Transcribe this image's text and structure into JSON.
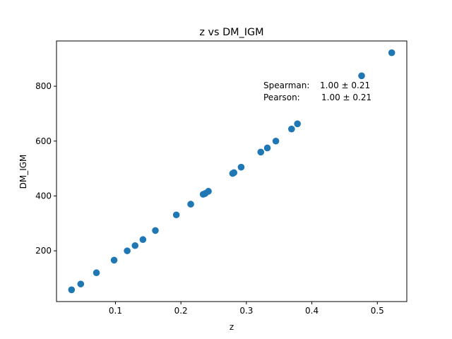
{
  "chart_data": {
    "type": "scatter",
    "title": "z vs DM_IGM",
    "xlabel": "z",
    "ylabel": "DM_IGM",
    "xlim": [
      0.01,
      0.545
    ],
    "ylim": [
      15,
      965
    ],
    "xticks": [
      0.1,
      0.2,
      0.3,
      0.4,
      0.5
    ],
    "xtick_labels": [
      "0.1",
      "0.2",
      "0.3",
      "0.4",
      "0.5"
    ],
    "yticks": [
      200,
      400,
      600,
      800
    ],
    "ytick_labels": [
      "200",
      "400",
      "600",
      "800"
    ],
    "grid": false,
    "marker_color": "#1f77b4",
    "annotation": {
      "spearman_label": "Spearman:",
      "spearman_value": "1.00 ± 0.21",
      "pearson_label": "Pearson:",
      "pearson_value": "1.00 ± 0.21"
    },
    "points": [
      {
        "x": 0.033,
        "y": 58
      },
      {
        "x": 0.047,
        "y": 79
      },
      {
        "x": 0.071,
        "y": 120
      },
      {
        "x": 0.098,
        "y": 166
      },
      {
        "x": 0.118,
        "y": 200
      },
      {
        "x": 0.13,
        "y": 219
      },
      {
        "x": 0.142,
        "y": 241
      },
      {
        "x": 0.161,
        "y": 274
      },
      {
        "x": 0.193,
        "y": 331
      },
      {
        "x": 0.215,
        "y": 370
      },
      {
        "x": 0.234,
        "y": 406
      },
      {
        "x": 0.237,
        "y": 409
      },
      {
        "x": 0.242,
        "y": 417
      },
      {
        "x": 0.279,
        "y": 482
      },
      {
        "x": 0.281,
        "y": 485
      },
      {
        "x": 0.292,
        "y": 505
      },
      {
        "x": 0.322,
        "y": 560
      },
      {
        "x": 0.332,
        "y": 575
      },
      {
        "x": 0.345,
        "y": 600
      },
      {
        "x": 0.369,
        "y": 644
      },
      {
        "x": 0.378,
        "y": 663
      },
      {
        "x": 0.476,
        "y": 838
      },
      {
        "x": 0.522,
        "y": 922
      }
    ]
  }
}
